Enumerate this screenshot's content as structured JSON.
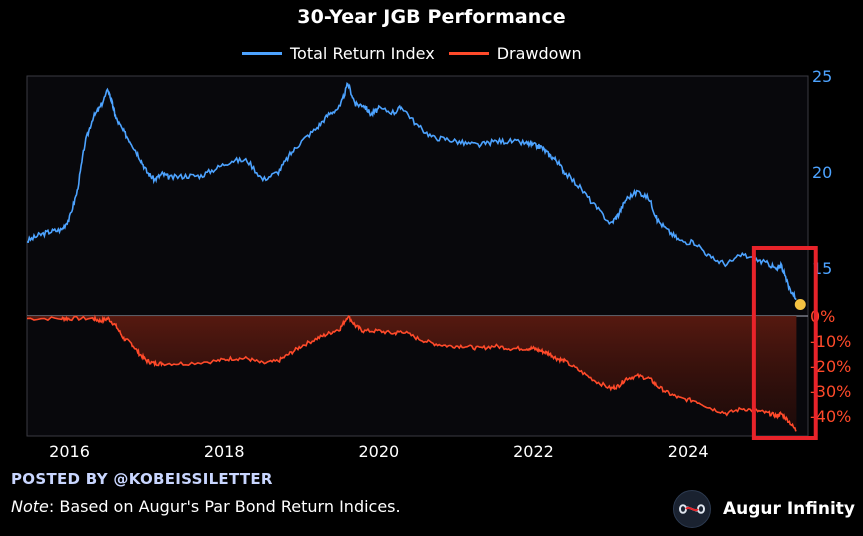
{
  "chart_data": {
    "type": "line",
    "title": "30-Year JGB Performance",
    "legend": [
      {
        "label": "Total Return Index",
        "color": "#4da3ff"
      },
      {
        "label": "Drawdown",
        "color": "#ff4a2a"
      }
    ],
    "x_ticks": [
      "2016",
      "2018",
      "2020",
      "2022",
      "2024"
    ],
    "x_range": [
      2015.45,
      2025.55
    ],
    "top_panel": {
      "ylim": [
        12.5,
        25
      ],
      "y_ticks": [
        {
          "v": 15,
          "label": "15"
        },
        {
          "v": 20,
          "label": "20"
        },
        {
          "v": 25,
          "label": "25"
        }
      ],
      "series": {
        "name": "Total Return Index",
        "x": [
          2015.45,
          2015.6,
          2015.75,
          2015.9,
          2016.0,
          2016.1,
          2016.2,
          2016.3,
          2016.4,
          2016.5,
          2016.55,
          2016.6,
          2016.7,
          2016.8,
          2016.9,
          2017.0,
          2017.1,
          2017.2,
          2017.3,
          2017.5,
          2017.7,
          2017.9,
          2018.1,
          2018.3,
          2018.5,
          2018.7,
          2018.85,
          2019.0,
          2019.2,
          2019.35,
          2019.5,
          2019.6,
          2019.7,
          2019.8,
          2019.9,
          2020.0,
          2020.2,
          2020.3,
          2020.5,
          2020.7,
          2020.9,
          2021.1,
          2021.3,
          2021.5,
          2021.7,
          2021.9,
          2022.0,
          2022.1,
          2022.2,
          2022.3,
          2022.4,
          2022.6,
          2022.8,
          2023.0,
          2023.1,
          2023.2,
          2023.35,
          2023.5,
          2023.6,
          2023.75,
          2023.9,
          2024.1,
          2024.3,
          2024.5,
          2024.7,
          2024.9,
          2025.05,
          2025.15,
          2025.2,
          2025.3,
          2025.4
        ],
        "y": [
          16.4,
          16.7,
          16.9,
          17.0,
          17.6,
          19.0,
          21.5,
          22.8,
          23.4,
          24.3,
          23.6,
          22.8,
          22.1,
          21.5,
          20.8,
          20.0,
          19.6,
          19.9,
          19.7,
          19.8,
          19.8,
          20.2,
          20.6,
          20.6,
          19.6,
          20.0,
          20.9,
          21.6,
          22.3,
          23.0,
          23.4,
          24.6,
          23.5,
          23.5,
          23.0,
          23.3,
          23.1,
          23.4,
          22.4,
          21.8,
          21.7,
          21.5,
          21.4,
          21.6,
          21.6,
          21.5,
          21.4,
          21.3,
          20.9,
          20.6,
          20.0,
          19.2,
          18.2,
          17.3,
          17.8,
          18.6,
          19.0,
          18.6,
          17.5,
          16.9,
          16.4,
          16.3,
          15.5,
          15.2,
          15.7,
          15.4,
          15.2,
          14.9,
          15.2,
          14.0,
          13.4
        ]
      },
      "last_point": {
        "x": 2025.45,
        "y": 13.1,
        "color": "#f5c242"
      }
    },
    "bottom_panel": {
      "ylim": [
        -48,
        0
      ],
      "y_ticks": [
        {
          "v": 0,
          "label": "0%"
        },
        {
          "v": -10,
          "label": "-10%"
        },
        {
          "v": -20,
          "label": "-20%"
        },
        {
          "v": -30,
          "label": "-30%"
        },
        {
          "v": -40,
          "label": "-40%"
        }
      ],
      "series": {
        "name": "Drawdown",
        "x": [
          2015.45,
          2015.9,
          2016.0,
          2016.3,
          2016.4,
          2016.5,
          2016.6,
          2016.7,
          2016.8,
          2016.9,
          2017.0,
          2017.1,
          2017.2,
          2017.5,
          2017.9,
          2018.1,
          2018.3,
          2018.5,
          2018.7,
          2018.85,
          2019.0,
          2019.2,
          2019.35,
          2019.5,
          2019.6,
          2019.7,
          2019.8,
          2020.0,
          2020.2,
          2020.3,
          2020.5,
          2020.7,
          2020.9,
          2021.1,
          2021.3,
          2021.5,
          2021.7,
          2021.9,
          2022.0,
          2022.1,
          2022.2,
          2022.3,
          2022.4,
          2022.6,
          2022.8,
          2023.0,
          2023.1,
          2023.2,
          2023.35,
          2023.5,
          2023.6,
          2023.75,
          2023.9,
          2024.1,
          2024.3,
          2024.5,
          2024.7,
          2024.9,
          2025.05,
          2025.15,
          2025.2,
          2025.3,
          2025.4
        ],
        "y": [
          -1,
          -1,
          -1,
          -1,
          -2,
          -1,
          -4,
          -9,
          -11,
          -15,
          -18,
          -19,
          -19,
          -19,
          -18,
          -17,
          -17,
          -19,
          -18,
          -15,
          -12,
          -9,
          -7,
          -5,
          0,
          -4,
          -6,
          -6,
          -7,
          -6,
          -9,
          -11,
          -12,
          -12,
          -13,
          -12,
          -13,
          -13,
          -13,
          -14,
          -15,
          -17,
          -18,
          -22,
          -26,
          -29,
          -28,
          -25,
          -24,
          -25,
          -28,
          -31,
          -33,
          -34,
          -37,
          -39,
          -37,
          -38,
          -39,
          -40,
          -39,
          -42,
          -46
        ]
      }
    },
    "highlight_box": {
      "x_range": [
        2024.85,
        2025.65
      ],
      "color": "#e8232a"
    }
  },
  "footer": {
    "posted_by": "POSTED BY @KOBEISSILETTER",
    "note_label": "Note",
    "note_text": ": Based on Augur's Par Bond Return Indices.",
    "brand": "Augur Infinity"
  }
}
